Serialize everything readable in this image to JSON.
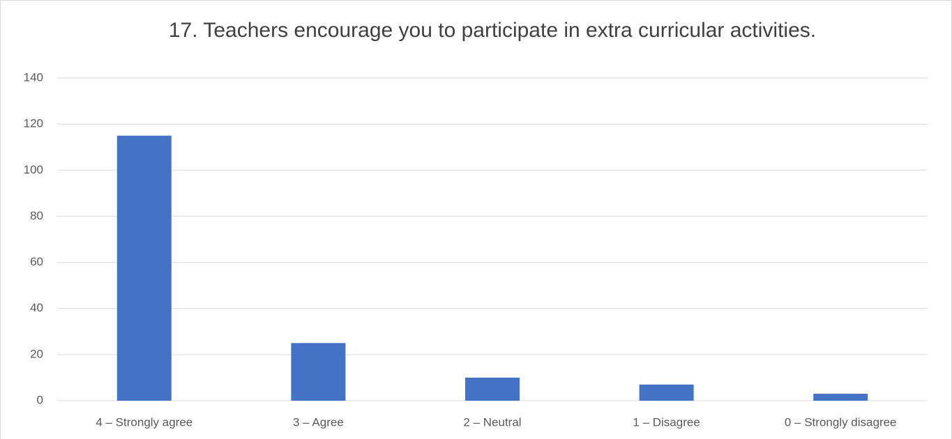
{
  "chart_data": {
    "type": "bar",
    "title": "17. Teachers encourage you to participate in extra curricular activities.",
    "categories": [
      "4 – Strongly agree",
      "3 – Agree",
      "2 – Neutral",
      "1 – Disagree",
      "0 – Strongly disagree"
    ],
    "values": [
      115,
      25,
      10,
      7,
      3
    ],
    "color": "#4472c4",
    "ylim": [
      0,
      140
    ],
    "yticks": [
      0,
      20,
      40,
      60,
      80,
      100,
      120,
      140
    ],
    "grid": true
  }
}
